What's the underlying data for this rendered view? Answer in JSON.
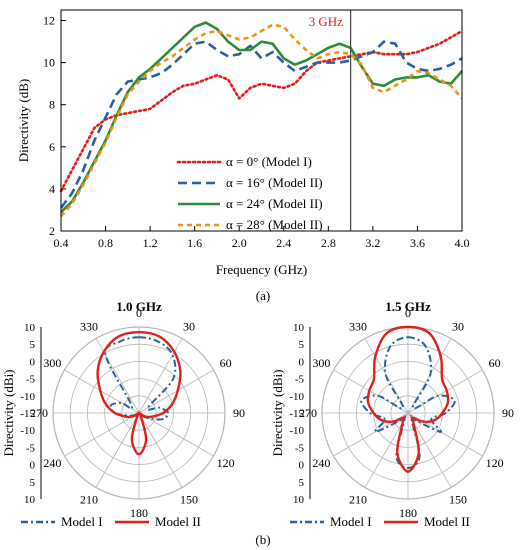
{
  "colors": {
    "red": "#e0201b",
    "blue": "#2b5f9e",
    "green": "#2e8b3a",
    "orange": "#f29016",
    "polar_grid": "#b5b5b5",
    "axis": "#000000"
  },
  "figure": {
    "label_a": "(a)",
    "label_b": "(b)"
  },
  "chart_data": [
    {
      "id": "line-chart",
      "type": "line",
      "xlabel": "Frequency (GHz)",
      "ylabel": "Directivity (dB)",
      "xlim": [
        0.4,
        4.0
      ],
      "ylim": [
        2,
        12.5
      ],
      "xticks": [
        "0.4",
        "0.8",
        "1.2",
        "1.6",
        "2.0",
        "2.4",
        "2.8",
        "3.2",
        "3.6",
        "4.0"
      ],
      "yticks": [
        "2",
        "4",
        "6",
        "8",
        "10",
        "12"
      ],
      "xtick_values": [
        0.4,
        0.8,
        1.2,
        1.6,
        2.0,
        2.4,
        2.8,
        3.2,
        3.6,
        4.0
      ],
      "ytick_values": [
        2,
        4,
        6,
        8,
        10,
        12
      ],
      "grid": false,
      "legend_position": "bottom-center",
      "annotation": {
        "text": "3 GHz",
        "x": 3.0
      },
      "series": [
        {
          "name": "α = 0° (Model I)",
          "color_key": "red",
          "dash": "dot",
          "x": [
            0.4,
            0.5,
            0.6,
            0.7,
            0.8,
            0.9,
            1.0,
            1.1,
            1.2,
            1.3,
            1.4,
            1.5,
            1.6,
            1.7,
            1.8,
            1.9,
            2.0,
            2.1,
            2.2,
            2.3,
            2.4,
            2.5,
            2.6,
            2.7,
            2.8,
            2.9,
            3.0,
            3.1,
            3.2,
            3.3,
            3.4,
            3.5,
            3.6,
            3.7,
            3.8,
            3.9,
            4.0
          ],
          "y": [
            3.9,
            4.9,
            5.9,
            6.9,
            7.3,
            7.5,
            7.6,
            7.7,
            7.8,
            8.2,
            8.6,
            8.9,
            9.0,
            9.2,
            9.4,
            9.2,
            8.3,
            8.8,
            9.0,
            8.9,
            8.8,
            9.0,
            9.6,
            10.0,
            10.1,
            10.2,
            10.3,
            10.4,
            10.5,
            10.4,
            10.4,
            10.4,
            10.5,
            10.7,
            10.9,
            11.2,
            11.5
          ]
        },
        {
          "name": "α = 16° (Model II)",
          "color_key": "blue",
          "dash": "dash",
          "x": [
            0.4,
            0.5,
            0.6,
            0.7,
            0.8,
            0.9,
            1.0,
            1.1,
            1.2,
            1.3,
            1.4,
            1.5,
            1.6,
            1.7,
            1.8,
            1.9,
            2.0,
            2.1,
            2.2,
            2.3,
            2.4,
            2.5,
            2.6,
            2.7,
            2.8,
            2.9,
            3.0,
            3.1,
            3.2,
            3.3,
            3.4,
            3.5,
            3.6,
            3.7,
            3.8,
            3.9,
            4.0
          ],
          "y": [
            3.1,
            3.8,
            4.9,
            6.3,
            7.4,
            8.5,
            9.1,
            9.2,
            9.3,
            9.5,
            9.9,
            10.4,
            10.9,
            11.0,
            10.6,
            10.3,
            10.4,
            10.8,
            10.2,
            10.5,
            10.0,
            9.6,
            9.8,
            10.0,
            10.0,
            10.0,
            10.1,
            10.3,
            10.5,
            11.0,
            10.9,
            10.0,
            9.7,
            9.6,
            9.7,
            9.9,
            10.2
          ]
        },
        {
          "name": "α = 24° (Model II)",
          "color_key": "green",
          "dash": "solid",
          "x": [
            0.4,
            0.5,
            0.6,
            0.7,
            0.8,
            0.9,
            1.0,
            1.1,
            1.2,
            1.3,
            1.4,
            1.5,
            1.6,
            1.7,
            1.8,
            1.9,
            2.0,
            2.1,
            2.2,
            2.3,
            2.4,
            2.5,
            2.6,
            2.7,
            2.8,
            2.9,
            3.0,
            3.1,
            3.2,
            3.3,
            3.4,
            3.5,
            3.6,
            3.7,
            3.8,
            3.9,
            4.0
          ],
          "y": [
            2.9,
            3.4,
            4.3,
            5.3,
            6.3,
            7.5,
            8.6,
            9.3,
            9.7,
            10.2,
            10.7,
            11.2,
            11.7,
            11.9,
            11.6,
            11.0,
            10.6,
            10.6,
            11.0,
            10.9,
            10.2,
            9.9,
            10.1,
            10.4,
            10.7,
            10.9,
            10.7,
            9.8,
            9.0,
            8.9,
            9.2,
            9.3,
            9.3,
            9.4,
            9.1,
            9.0,
            9.6
          ]
        },
        {
          "name": "α = 28° (Model II)",
          "color_key": "orange",
          "dash": "dash-short",
          "x": [
            0.4,
            0.5,
            0.6,
            0.7,
            0.8,
            0.9,
            1.0,
            1.1,
            1.2,
            1.3,
            1.4,
            1.5,
            1.6,
            1.7,
            1.8,
            1.9,
            2.0,
            2.1,
            2.2,
            2.3,
            2.4,
            2.5,
            2.6,
            2.7,
            2.8,
            2.9,
            3.0,
            3.1,
            3.2,
            3.3,
            3.4,
            3.5,
            3.6,
            3.7,
            3.8,
            3.9,
            4.0
          ],
          "y": [
            2.7,
            3.3,
            4.2,
            5.2,
            6.2,
            7.4,
            8.5,
            9.1,
            9.6,
            10.0,
            10.3,
            10.7,
            11.1,
            11.4,
            11.5,
            11.3,
            11.1,
            11.2,
            11.5,
            11.8,
            11.7,
            11.1,
            10.6,
            10.2,
            10.4,
            10.5,
            10.4,
            9.9,
            8.8,
            8.6,
            8.9,
            9.2,
            9.6,
            9.5,
            9.2,
            8.9,
            8.3
          ]
        }
      ]
    },
    {
      "id": "polar-1",
      "type": "polar",
      "title": "1.0 GHz",
      "radial_label": "Directivity (dBi)",
      "r_range": [
        -15,
        10
      ],
      "angle_ticks": [
        "0",
        "30",
        "60",
        "90",
        "120",
        "150",
        "180",
        "210",
        "240",
        "270",
        "300",
        "330"
      ],
      "radial_ticks": [
        "10",
        "5",
        "0",
        "-5",
        "-10",
        "-15",
        "-10",
        "-5",
        "0",
        "5",
        "10"
      ],
      "legend_position": "bottom",
      "series": [
        {
          "name": "Model I",
          "color_key": "blue",
          "dash": "dashdot",
          "theta": [
            0,
            15,
            30,
            45,
            60,
            75,
            90,
            105,
            120,
            135,
            150,
            165,
            180,
            195,
            210,
            225,
            240,
            255,
            270,
            285,
            300,
            315,
            330,
            345
          ],
          "r": [
            7,
            6.5,
            4.5,
            -1,
            -12,
            -9,
            -6.5,
            -8,
            -12,
            -14,
            -15,
            -15,
            -15,
            -15,
            -15,
            -15,
            -14,
            -12,
            -8,
            -6.5,
            -9,
            -12,
            4.5,
            6.5
          ]
        },
        {
          "name": "Model II",
          "color_key": "red",
          "dash": "solid",
          "theta": [
            0,
            15,
            30,
            45,
            60,
            75,
            90,
            105,
            120,
            135,
            150,
            165,
            180,
            195,
            210,
            225,
            240,
            255,
            270,
            285,
            300,
            315,
            330,
            345
          ],
          "r": [
            8.5,
            8,
            5.5,
            2,
            -2,
            -5,
            -8,
            -11,
            -13,
            -15,
            -14,
            -7,
            -3,
            -7,
            -14,
            -15,
            -13,
            -11,
            -8,
            -5,
            -2,
            2,
            5.5,
            8
          ]
        }
      ]
    },
    {
      "id": "polar-2",
      "type": "polar",
      "title": "1.5 GHz",
      "radial_label": "Directivity (dBi)",
      "r_range": [
        -15,
        10
      ],
      "angle_ticks": [
        "0",
        "30",
        "60",
        "90",
        "120",
        "150",
        "180",
        "210",
        "240",
        "270",
        "300",
        "330"
      ],
      "radial_ticks": [
        "10",
        "5",
        "0",
        "-5",
        "-10",
        "-15",
        "-10",
        "-5",
        "0",
        "5",
        "10"
      ],
      "legend_position": "bottom",
      "series": [
        {
          "name": "Model I",
          "color_key": "blue",
          "dash": "dashdot",
          "theta": [
            0,
            15,
            30,
            45,
            60,
            75,
            90,
            105,
            120,
            135,
            150,
            165,
            180,
            195,
            210,
            225,
            240,
            255,
            270,
            285,
            300,
            315,
            330,
            345
          ],
          "r": [
            7,
            5,
            -2,
            -13,
            -5,
            -1,
            -4,
            -8,
            -4,
            -12,
            -13,
            -2,
            1,
            -2,
            -13,
            -12,
            -4,
            -8,
            -4,
            -1,
            -5,
            -13,
            -2,
            5
          ]
        },
        {
          "name": "Model II",
          "color_key": "red",
          "dash": "solid",
          "theta": [
            0,
            15,
            30,
            45,
            60,
            75,
            90,
            105,
            120,
            135,
            150,
            165,
            180,
            195,
            210,
            225,
            240,
            255,
            270,
            285,
            300,
            315,
            330,
            345
          ],
          "r": [
            10,
            9,
            4,
            -1,
            -2,
            -3,
            -5,
            -7,
            -10,
            -13,
            -12,
            -3,
            2,
            -3,
            -12,
            -13,
            -10,
            -7,
            -5,
            -3,
            -2,
            -1,
            4,
            9
          ]
        }
      ]
    }
  ]
}
